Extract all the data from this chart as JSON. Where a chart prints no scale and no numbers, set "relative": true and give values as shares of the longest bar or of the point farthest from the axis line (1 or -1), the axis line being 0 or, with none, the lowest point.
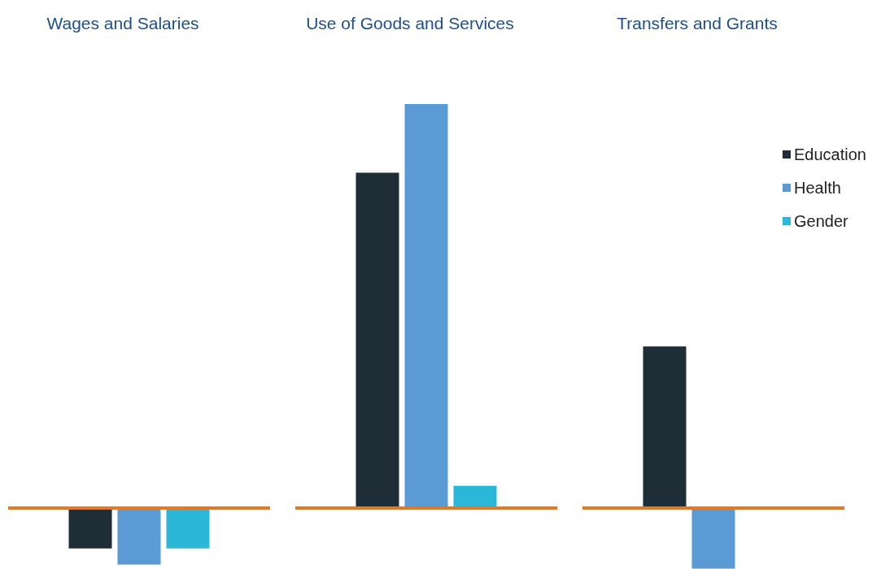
{
  "chart_data": {
    "type": "bar",
    "relative": true,
    "categories": [
      "Wages and Salaries",
      "Use of Goods and Services",
      "Transfers and Grants"
    ],
    "ref_lines": [
      {
        "axis": "y",
        "value": 0,
        "color": "#e87722"
      }
    ],
    "legend": "right",
    "series": [
      {
        "name": "Education",
        "color": "#1f2d36",
        "values": [
          -0.1,
          0.83,
          0.4
        ]
      },
      {
        "name": "Health",
        "color": "#5b9bd5",
        "values": [
          -0.14,
          1,
          -0.15
        ]
      },
      {
        "name": "Gender",
        "color": "#2bb8d8",
        "values": [
          -0.1,
          0.055,
          null
        ]
      }
    ]
  }
}
